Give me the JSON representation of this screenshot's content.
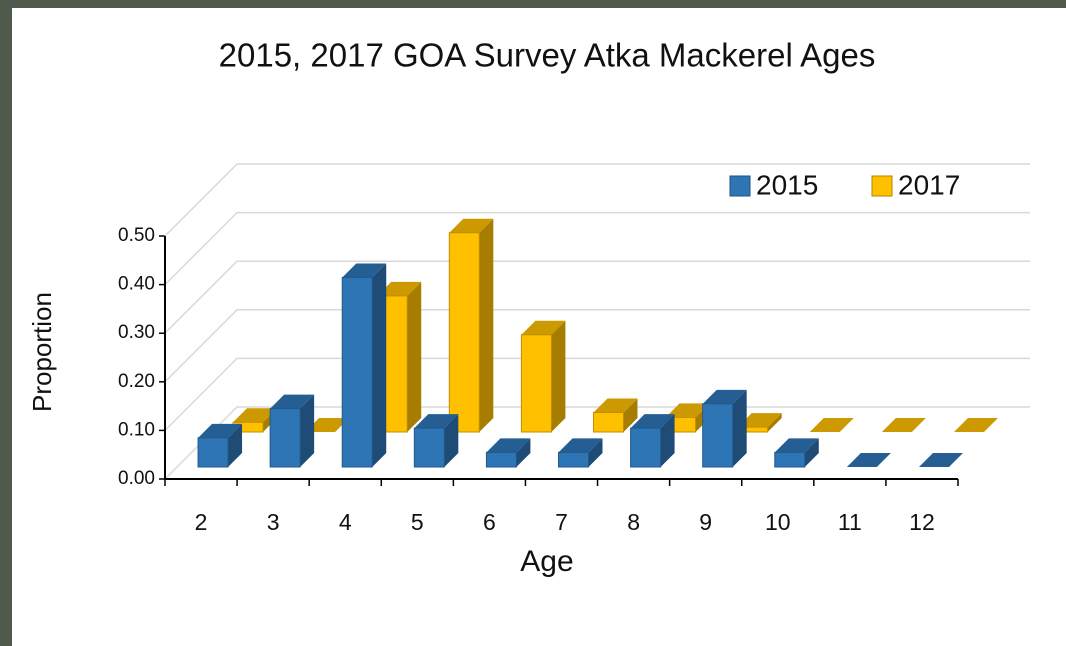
{
  "chart_data": {
    "type": "bar3d",
    "title": "2015, 2017 GOA Survey Atka Mackerel Ages",
    "x_label": "Age",
    "y_label": "Proportion",
    "categories": [
      "2",
      "3",
      "4",
      "5",
      "6",
      "7",
      "8",
      "9",
      "10",
      "11",
      "12"
    ],
    "series": [
      {
        "name": "2015",
        "color": "#2e75b6",
        "values": [
          0.06,
          0.12,
          0.39,
          0.08,
          0.03,
          0.03,
          0.08,
          0.13,
          0.03,
          0,
          0
        ]
      },
      {
        "name": "2017",
        "color": "#ffc000",
        "values": [
          0.02,
          0,
          0.28,
          0.41,
          0.2,
          0.04,
          0.03,
          0.01,
          0,
          0,
          0
        ]
      }
    ],
    "ylim": [
      0,
      0.5
    ],
    "yticks": [
      {
        "value": 0,
        "label": "0.00"
      },
      {
        "value": 0.1,
        "label": "0.10"
      },
      {
        "value": 0.2,
        "label": "0.20"
      },
      {
        "value": 0.3,
        "label": "0.30"
      },
      {
        "value": 0.4,
        "label": "0.40"
      },
      {
        "value": 0.5,
        "label": "0.50"
      }
    ],
    "grid": true,
    "legend": "top-right"
  }
}
